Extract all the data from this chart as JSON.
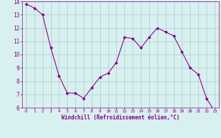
{
  "x": [
    0,
    1,
    2,
    3,
    4,
    5,
    6,
    7,
    8,
    9,
    10,
    11,
    12,
    13,
    14,
    15,
    16,
    17,
    18,
    19,
    20,
    21,
    22,
    23
  ],
  "y": [
    13.8,
    13.5,
    13.0,
    10.5,
    8.4,
    7.1,
    7.1,
    6.7,
    7.5,
    8.3,
    8.6,
    9.4,
    11.3,
    11.2,
    10.5,
    11.3,
    12.0,
    11.7,
    11.4,
    10.2,
    9.0,
    8.5,
    6.7,
    5.7
  ],
  "line_color": "#880088",
  "marker": "D",
  "marker_size": 2,
  "bg_color": "#d8f0f0",
  "grid_color": "#aacccc",
  "xlabel": "Windchill (Refroidissement éolien,°C)",
  "xlabel_color": "#880088",
  "tick_color": "#880088",
  "ylim": [
    6,
    14
  ],
  "xlim_min": -0.5,
  "xlim_max": 23.5,
  "yticks": [
    6,
    7,
    8,
    9,
    10,
    11,
    12,
    13,
    14
  ],
  "xticks": [
    0,
    1,
    2,
    3,
    4,
    5,
    6,
    7,
    8,
    9,
    10,
    11,
    12,
    13,
    14,
    15,
    16,
    17,
    18,
    19,
    20,
    21,
    22,
    23
  ]
}
